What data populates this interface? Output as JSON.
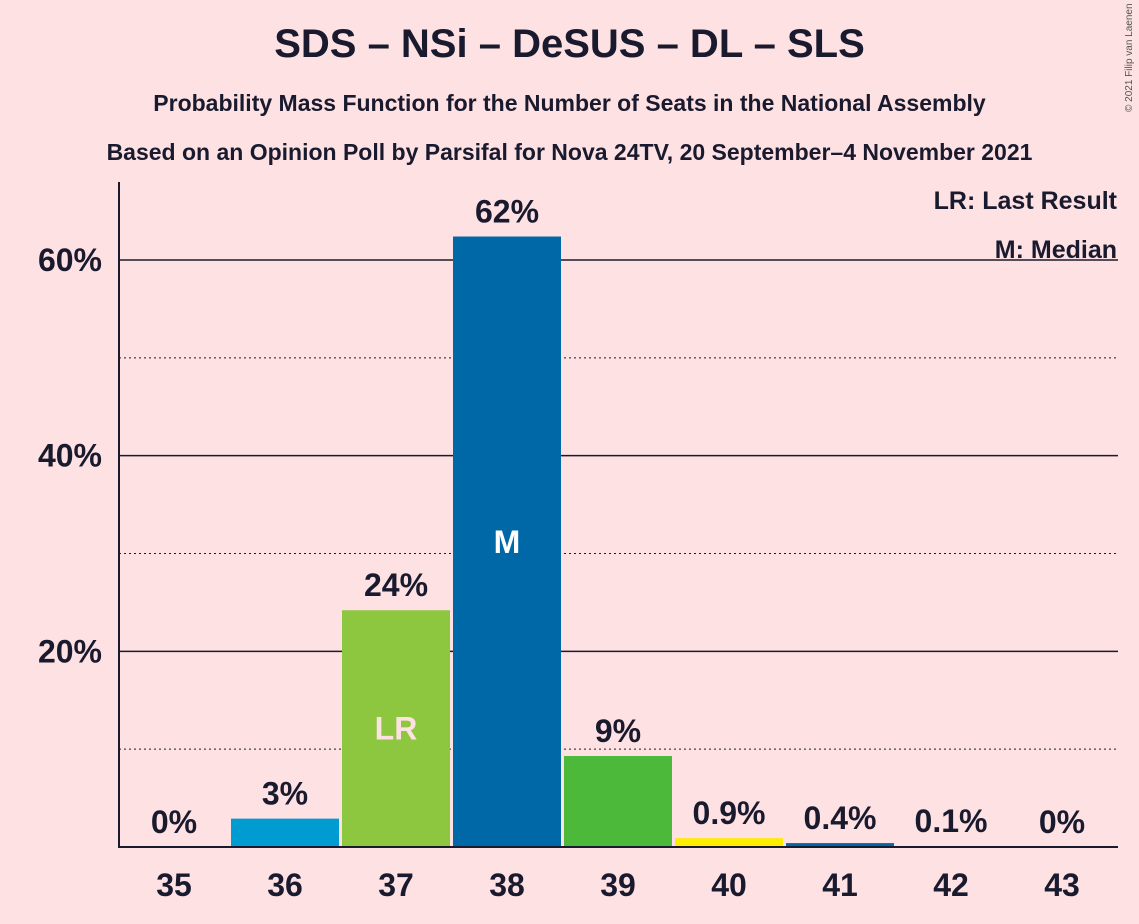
{
  "header": {
    "title": "SDS – NSi – DeSUS – DL – SLS",
    "subtitle": "Probability Mass Function for the Number of Seats in the National Assembly",
    "source": "Based on an Opinion Poll by Parsifal for Nova 24TV, 20 September–4 November 2021",
    "copyright": "© 2021 Filip van Laenen"
  },
  "legend": {
    "last_result": "LR: Last Result",
    "median": "M: Median"
  },
  "colors": {
    "background": "#fde1e3",
    "sds": "#0068a7",
    "nsi": "#009bd1",
    "desus": "#8dc63f",
    "sls": "#4db93a",
    "dl": "#ffed00",
    "text": "#1a1a2e"
  },
  "chart_data": {
    "type": "bar",
    "categories": [
      "35",
      "36",
      "37",
      "38",
      "39",
      "40",
      "41",
      "42",
      "43"
    ],
    "values": [
      0,
      2.9,
      24.2,
      62.4,
      9.3,
      0.9,
      0.4,
      0.1,
      0
    ],
    "value_labels": [
      "0%",
      "3%",
      "24%",
      "62%",
      "9%",
      "0.9%",
      "0.4%",
      "0.1%",
      "0%"
    ],
    "bar_colors": [
      "#0068a7",
      "#009bd1",
      "#8dc63f",
      "#0068a7",
      "#4db93a",
      "#ffed00",
      "#0068a7",
      "#0068a7",
      "#0068a7"
    ],
    "markers": {
      "37": "LR",
      "38": "M"
    },
    "yticks": [
      20,
      40,
      60
    ],
    "ytick_labels": [
      "20%",
      "40%",
      "60%"
    ],
    "ylim": [
      0,
      68
    ],
    "grid": "solid lines at labelled ticks, dotted lines at 10, 30, 50"
  }
}
